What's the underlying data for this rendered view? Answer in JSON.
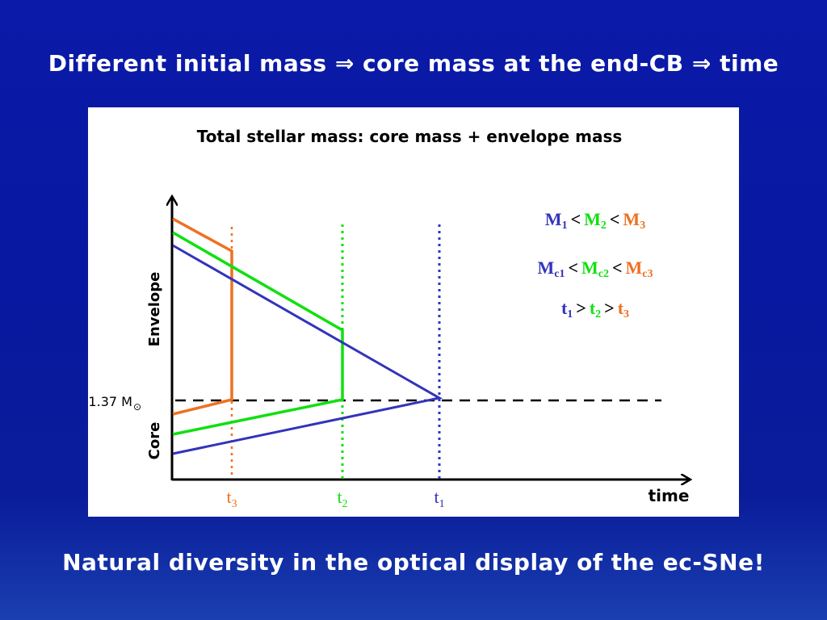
{
  "slide": {
    "title": "Different initial mass ⇒ core mass at the end-CB ⇒ time",
    "footer": "Natural diversity in the optical display of the ec-SNe!"
  },
  "diagram": {
    "heading": "Total stellar mass: core mass + envelope mass",
    "y_label_envelope": "Envelope",
    "y_label_core": "Core",
    "chandra_label": "1.37 M",
    "sun_symbol": "⊙",
    "x_axis_label": "time",
    "t_labels": [
      {
        "base": "t",
        "sub": "3",
        "color": "#f07020"
      },
      {
        "base": "t",
        "sub": "2",
        "color": "#10e010"
      },
      {
        "base": "t",
        "sub": "1",
        "color": "#3333bb"
      }
    ],
    "relations": {
      "mass": [
        {
          "base": "M",
          "sub": "1",
          "color": "#3333bb"
        },
        {
          "op": "<"
        },
        {
          "base": "M",
          "sub": "2",
          "color": "#10e010"
        },
        {
          "op": "<"
        },
        {
          "base": "M",
          "sub": "3",
          "color": "#f07020"
        }
      ],
      "core": [
        {
          "base": "M",
          "sub": "c1",
          "color": "#3333bb"
        },
        {
          "op": "<"
        },
        {
          "base": "M",
          "sub": "c2",
          "color": "#10e010"
        },
        {
          "op": "<"
        },
        {
          "base": "M",
          "sub": "c3",
          "color": "#f07020"
        }
      ],
      "time": [
        {
          "base": "t",
          "sub": "1",
          "color": "#3333bb"
        },
        {
          "op": ">"
        },
        {
          "base": "t",
          "sub": "2",
          "color": "#10e010"
        },
        {
          "op": ">"
        },
        {
          "base": "t",
          "sub": "3",
          "color": "#f07020"
        }
      ]
    },
    "colors": {
      "star1": "#3333bb",
      "star2": "#10e010",
      "star3": "#f07020",
      "axis": "#000000"
    }
  }
}
